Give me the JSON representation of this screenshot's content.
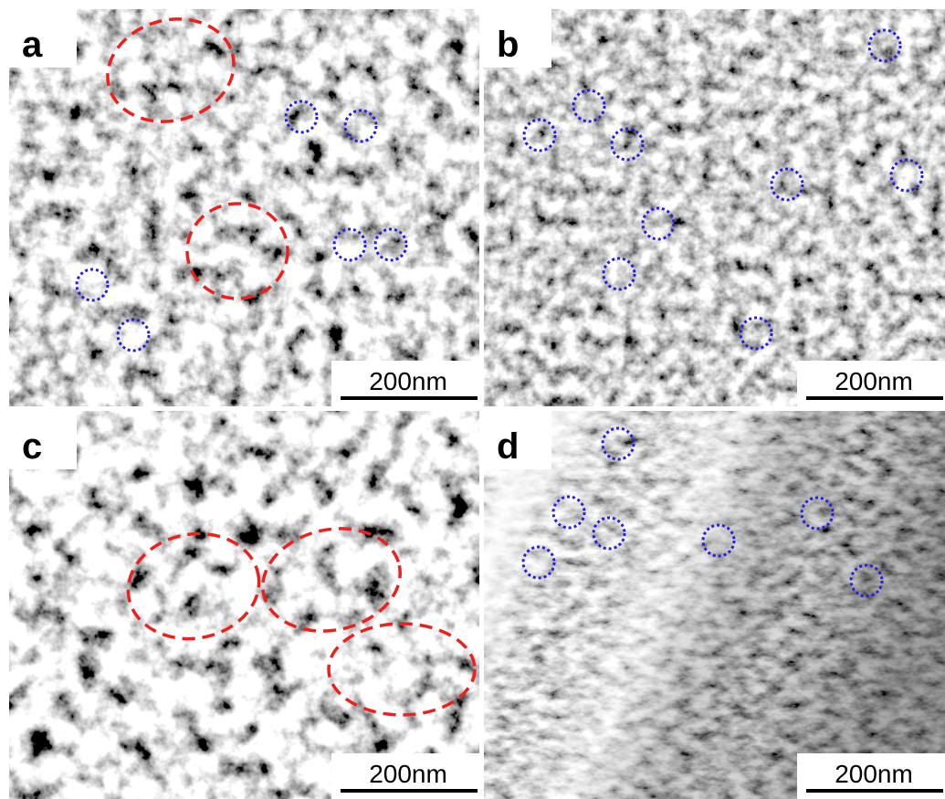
{
  "panels": [
    {
      "label": "a",
      "scale_bar": "200nm"
    },
    {
      "label": "b",
      "scale_bar": "200nm"
    },
    {
      "label": "c",
      "scale_bar": "200nm"
    },
    {
      "label": "d",
      "scale_bar": "200nm"
    }
  ]
}
